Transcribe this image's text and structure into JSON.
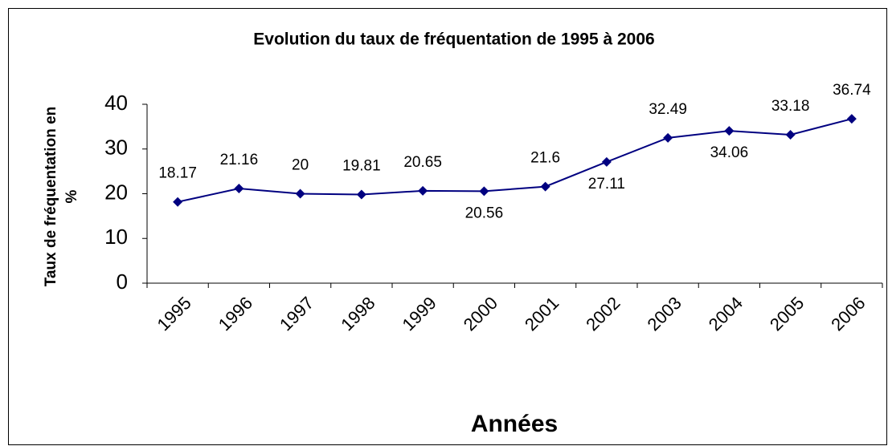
{
  "chart_data": {
    "type": "line",
    "title": "Evolution du taux de fréquentation de 1995 à 2006",
    "xlabel": "Années",
    "ylabel": [
      "Taux de fréquentation en",
      "%"
    ],
    "categories": [
      "1995",
      "1996",
      "1997",
      "1998",
      "1999",
      "2000",
      "2001",
      "2002",
      "2003",
      "2004",
      "2005",
      "2006"
    ],
    "values": [
      18.17,
      21.16,
      20,
      19.81,
      20.65,
      20.56,
      21.6,
      27.11,
      32.49,
      34.06,
      33.18,
      36.74
    ],
    "color": "#000080",
    "ylim": [
      0,
      40
    ],
    "yticks": [
      0,
      10,
      20,
      30,
      40
    ],
    "grid": false
  }
}
